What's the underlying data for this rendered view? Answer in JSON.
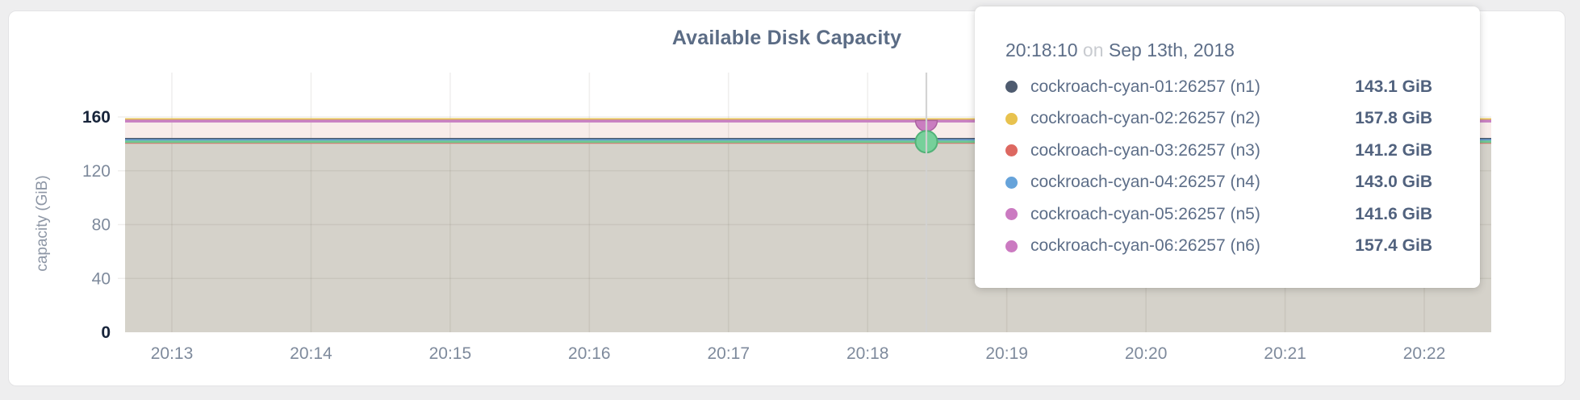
{
  "card": {
    "title": "Available Disk Capacity"
  },
  "tooltip": {
    "time": "20:18:10",
    "connector": "on",
    "date": "Sep 13th, 2018",
    "rows": [
      {
        "name": "cockroach-cyan-01:26257 (n1)",
        "value": "143.1 GiB",
        "dot_color": "#4e5b6f"
      },
      {
        "name": "cockroach-cyan-02:26257 (n2)",
        "value": "157.8 GiB",
        "dot_color": "#e8c24e"
      },
      {
        "name": "cockroach-cyan-03:26257 (n3)",
        "value": "141.2 GiB",
        "dot_color": "#dd6861"
      },
      {
        "name": "cockroach-cyan-04:26257 (n4)",
        "value": "143.0 GiB",
        "dot_color": "#66a3da"
      },
      {
        "name": "cockroach-cyan-05:26257 (n5)",
        "value": "141.6 GiB",
        "dot_color": "#cb7ac1"
      },
      {
        "name": "cockroach-cyan-06:26257 (n6)",
        "value": "157.4 GiB",
        "dot_color": "#cb7ac1"
      }
    ]
  },
  "chart_data": {
    "type": "area",
    "title": "Available Disk Capacity",
    "xlabel": "",
    "ylabel": "capacity (GiB)",
    "ylim": [
      0,
      160
    ],
    "yticks": [
      0,
      40,
      80,
      120,
      160
    ],
    "ytick_emphasized": [
      0,
      160
    ],
    "xticks": [
      "20:13",
      "20:14",
      "20:15",
      "20:16",
      "20:17",
      "20:18",
      "20:19",
      "20:20",
      "20:21",
      "20:22"
    ],
    "grid": true,
    "legend_position": "none",
    "hover_time": "20:18:10",
    "note": "all series are flat (constant) across the visible time window",
    "series": [
      {
        "name": "cockroach-cyan-01:26257 (n1)",
        "value_gib": 143.1,
        "color": "#4e5b6f"
      },
      {
        "name": "cockroach-cyan-02:26257 (n2)",
        "value_gib": 157.8,
        "color": "#e5c14b"
      },
      {
        "name": "cockroach-cyan-03:26257 (n3)",
        "value_gib": 141.2,
        "color": "#d9756a"
      },
      {
        "name": "cockroach-cyan-04:26257 (n4)",
        "value_gib": 143.0,
        "color": "#689fd6"
      },
      {
        "name": "cockroach-cyan-05:26257 (n5)",
        "value_gib": 141.6,
        "color": "#70c893"
      },
      {
        "name": "cockroach-cyan-06:26257 (n6)",
        "value_gib": 157.4,
        "color": "#c87fc2"
      }
    ],
    "fills": {
      "band_low": "#d5d2ca",
      "band_high": "#f8ecea"
    },
    "hover_markers": [
      {
        "series": "cockroach-cyan-06:26257 (n6)",
        "shape": "half-circle",
        "fill": "#ca7dc0",
        "stroke": "#aa619f"
      },
      {
        "series": "cockroach-cyan-05:26257 (n5)",
        "shape": "circle",
        "fill": "#76d09a",
        "stroke": "#52b278"
      }
    ]
  }
}
